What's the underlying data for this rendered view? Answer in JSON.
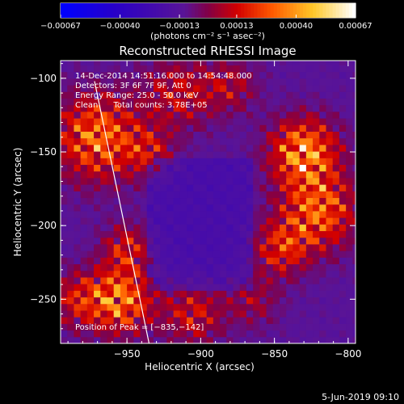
{
  "chart_data": {
    "type": "heatmap",
    "title": "Reconstructed RHESSI Image",
    "xlabel": "Heliocentric X (arcsec)",
    "ylabel": "Heliocentric Y (arcsec)",
    "xlim": [
      -995,
      -795
    ],
    "ylim": [
      -280,
      -88
    ],
    "x_ticks": [
      {
        "value": -950,
        "label": "−950"
      },
      {
        "value": -900,
        "label": "−900"
      },
      {
        "value": -850,
        "label": "−850"
      },
      {
        "value": -800,
        "label": "−800"
      }
    ],
    "y_ticks": [
      {
        "value": -100,
        "label": "−100"
      },
      {
        "value": -150,
        "label": "−150"
      },
      {
        "value": -200,
        "label": "−200"
      },
      {
        "value": -250,
        "label": "−250"
      }
    ],
    "colorbar": {
      "min": -0.00067,
      "max": 0.00067,
      "label": "(photons cm⁻² s⁻¹ asec⁻²)",
      "ticks": [
        {
          "value": -0.00067,
          "label": "−0.00067"
        },
        {
          "value": -0.0004,
          "label": "−0.00040"
        },
        {
          "value": -0.00013,
          "label": "−0.00013"
        },
        {
          "value": 0.00013,
          "label": "0.00013"
        },
        {
          "value": 0.0004,
          "label": "0.00040"
        },
        {
          "value": 0.00067,
          "label": "0.00067"
        }
      ]
    },
    "annotations": [
      "14-Dec-2014 14:51:16.000 to 14:54:48.000",
      "Detectors: 3F 6F 7F 9F, Att 0",
      "Energy Range: 25.0 - 50.0 keV",
      "Clean      Total counts: 3.78E+05"
    ],
    "peak_label": "Position of Peak = [−835,−142]",
    "limb_line": [
      [
        -972,
        -102
      ],
      [
        -935,
        -280
      ]
    ],
    "grid": false
  },
  "footer": {
    "date": "5-Jun-2019 09:10"
  }
}
